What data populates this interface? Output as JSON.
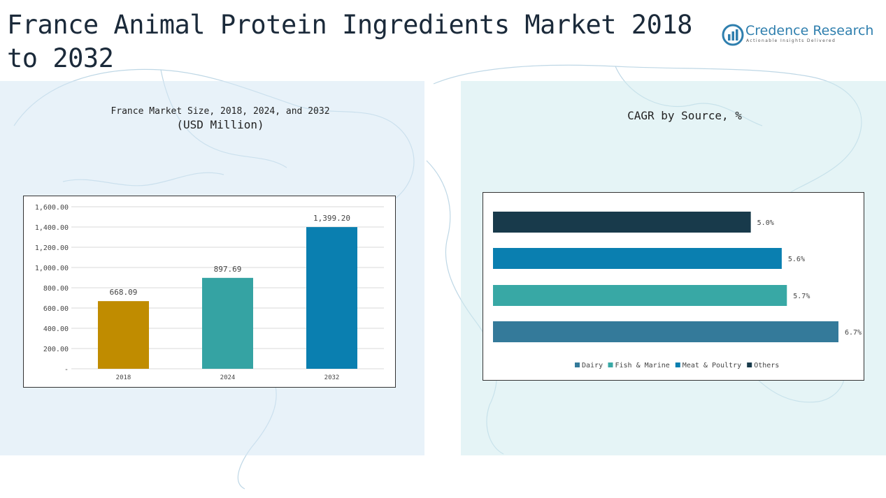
{
  "page": {
    "title": "France Animal Protein Ingredients Market 2018 to 2032"
  },
  "logo": {
    "name": "Credence Research",
    "tagline": "Actionable Insights Delivered",
    "icon": "bar-chart-circle-icon"
  },
  "colors": {
    "bar_2018": "#c08c00",
    "bar_2024": "#35a3a3",
    "bar_2032": "#0a7fb0",
    "dairy": "#347a9a",
    "fish_marine": "#38a8a5",
    "meat_poultry": "#0a7fb0",
    "others": "#183a4b"
  },
  "chart_data": [
    {
      "type": "bar",
      "title": "France Market Size, 2018, 2024, and 2032",
      "subtitle": "(USD Million)",
      "categories": [
        "2018",
        "2024",
        "2032"
      ],
      "values": [
        668.09,
        897.69,
        1399.2
      ],
      "value_labels": [
        "668.09",
        "897.69",
        "1,399.20"
      ],
      "ylim": [
        0,
        1600
      ],
      "yticks": [
        0,
        200,
        400,
        600,
        800,
        1000,
        1200,
        1400,
        1600
      ],
      "ytick_labels": [
        "-",
        "200.00",
        "400.00",
        "600.00",
        "800.00",
        "1,000.00",
        "1,200.00",
        "1,400.00",
        "1,600.00"
      ],
      "grid": true
    },
    {
      "type": "bar",
      "orientation": "horizontal",
      "title": "CAGR by Source, %",
      "categories": [
        "Dairy",
        "Fish & Marine",
        "Meat & Poultry",
        "Others"
      ],
      "values": [
        6.7,
        5.7,
        5.6,
        5.0
      ],
      "value_labels": [
        "6.7%",
        "5.7%",
        "5.6%",
        "5.0%"
      ],
      "legend": [
        "Dairy",
        "Fish & Marine",
        "Meat & Poultry",
        "Others"
      ],
      "legend_position": "bottom",
      "grid": false
    }
  ]
}
